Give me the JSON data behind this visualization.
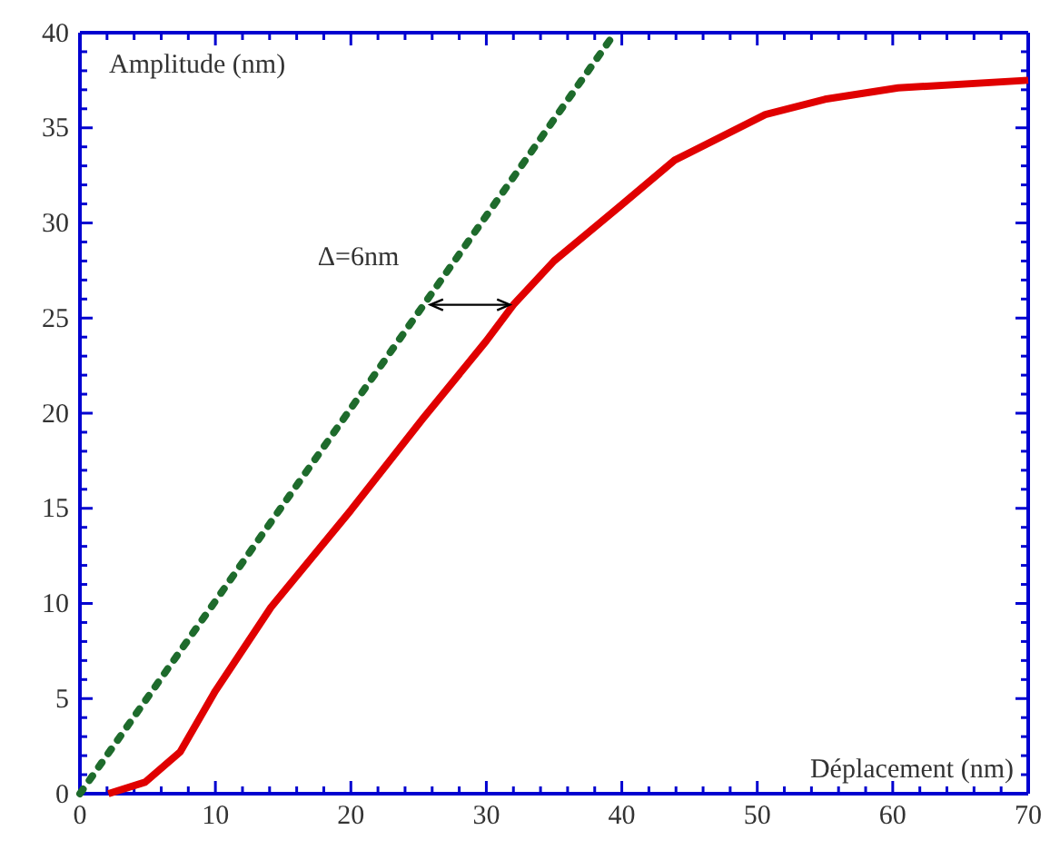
{
  "chart_data": {
    "type": "line",
    "xlabel": "Déplacement (nm)",
    "ylabel": "Amplitude (nm)",
    "xlim": [
      0,
      70
    ],
    "ylim": [
      0,
      40
    ],
    "xticks": [
      0,
      {
        "value": 2,
        "label": null
      },
      {
        "value": 4,
        "label": null
      },
      {
        "value": 6,
        "label": null
      },
      {
        "value": 8,
        "label": null
      },
      10,
      {
        "value": 12,
        "label": null
      },
      {
        "value": 14,
        "label": null
      },
      {
        "value": 16,
        "label": null
      },
      {
        "value": 18,
        "label": null
      },
      20,
      {
        "value": 22,
        "label": null
      },
      {
        "value": 24,
        "label": null
      },
      {
        "value": 26,
        "label": null
      },
      {
        "value": 28,
        "label": null
      },
      30,
      {
        "value": 32,
        "label": null
      },
      {
        "value": 34,
        "label": null
      },
      {
        "value": 36,
        "label": null
      },
      {
        "value": 38,
        "label": null
      },
      40,
      {
        "value": 42,
        "label": null
      },
      {
        "value": 44,
        "label": null
      },
      {
        "value": 46,
        "label": null
      },
      {
        "value": 48,
        "label": null
      },
      50,
      {
        "value": 52,
        "label": null
      },
      {
        "value": 54,
        "label": null
      },
      {
        "value": 56,
        "label": null
      },
      {
        "value": 58,
        "label": null
      },
      60,
      {
        "value": 62,
        "label": null
      },
      {
        "value": 64,
        "label": null
      },
      {
        "value": 66,
        "label": null
      },
      {
        "value": 68,
        "label": null
      },
      70
    ],
    "yticks": [
      0,
      {
        "value": 1,
        "label": null
      },
      {
        "value": 2,
        "label": null
      },
      {
        "value": 3,
        "label": null
      },
      {
        "value": 4,
        "label": null
      },
      5,
      {
        "value": 6,
        "label": null
      },
      {
        "value": 7,
        "label": null
      },
      {
        "value": 8,
        "label": null
      },
      {
        "value": 9,
        "label": null
      },
      10,
      {
        "value": 11,
        "label": null
      },
      {
        "value": 12,
        "label": null
      },
      {
        "value": 13,
        "label": null
      },
      {
        "value": 14,
        "label": null
      },
      15,
      {
        "value": 16,
        "label": null
      },
      {
        "value": 17,
        "label": null
      },
      {
        "value": 18,
        "label": null
      },
      {
        "value": 19,
        "label": null
      },
      20,
      {
        "value": 21,
        "label": null
      },
      {
        "value": 22,
        "label": null
      },
      {
        "value": 23,
        "label": null
      },
      {
        "value": 24,
        "label": null
      },
      25,
      {
        "value": 26,
        "label": null
      },
      {
        "value": 27,
        "label": null
      },
      {
        "value": 28,
        "label": null
      },
      {
        "value": 29,
        "label": null
      },
      30,
      {
        "value": 31,
        "label": null
      },
      {
        "value": 32,
        "label": null
      },
      {
        "value": 33,
        "label": null
      },
      {
        "value": 34,
        "label": null
      },
      35,
      {
        "value": 36,
        "label": null
      },
      {
        "value": 37,
        "label": null
      },
      {
        "value": 38,
        "label": null
      },
      {
        "value": 39,
        "label": null
      },
      40
    ],
    "series": [
      {
        "color": "#1e6b2c",
        "line_style": "dotted",
        "x": [
          0,
          39.5
        ],
        "values": [
          0,
          40
        ]
      },
      {
        "color": "#e00000",
        "line_style": "solid",
        "x": [
          2.1,
          4.8,
          7.4,
          10,
          14.1,
          20,
          25.3,
          30,
          32,
          35,
          39.9,
          43.9,
          50.6,
          55,
          60.4,
          70
        ],
        "values": [
          0,
          0.6,
          2.2,
          5.4,
          9.8,
          14.9,
          19.7,
          23.8,
          25.7,
          28,
          30.9,
          33.3,
          35.7,
          36.5,
          37.1,
          37.5
        ]
      }
    ],
    "annotations": [
      {
        "text": "Δ=6nm",
        "x": 25.6,
        "y": 25.7
      }
    ],
    "grid": false,
    "marker": "none"
  }
}
